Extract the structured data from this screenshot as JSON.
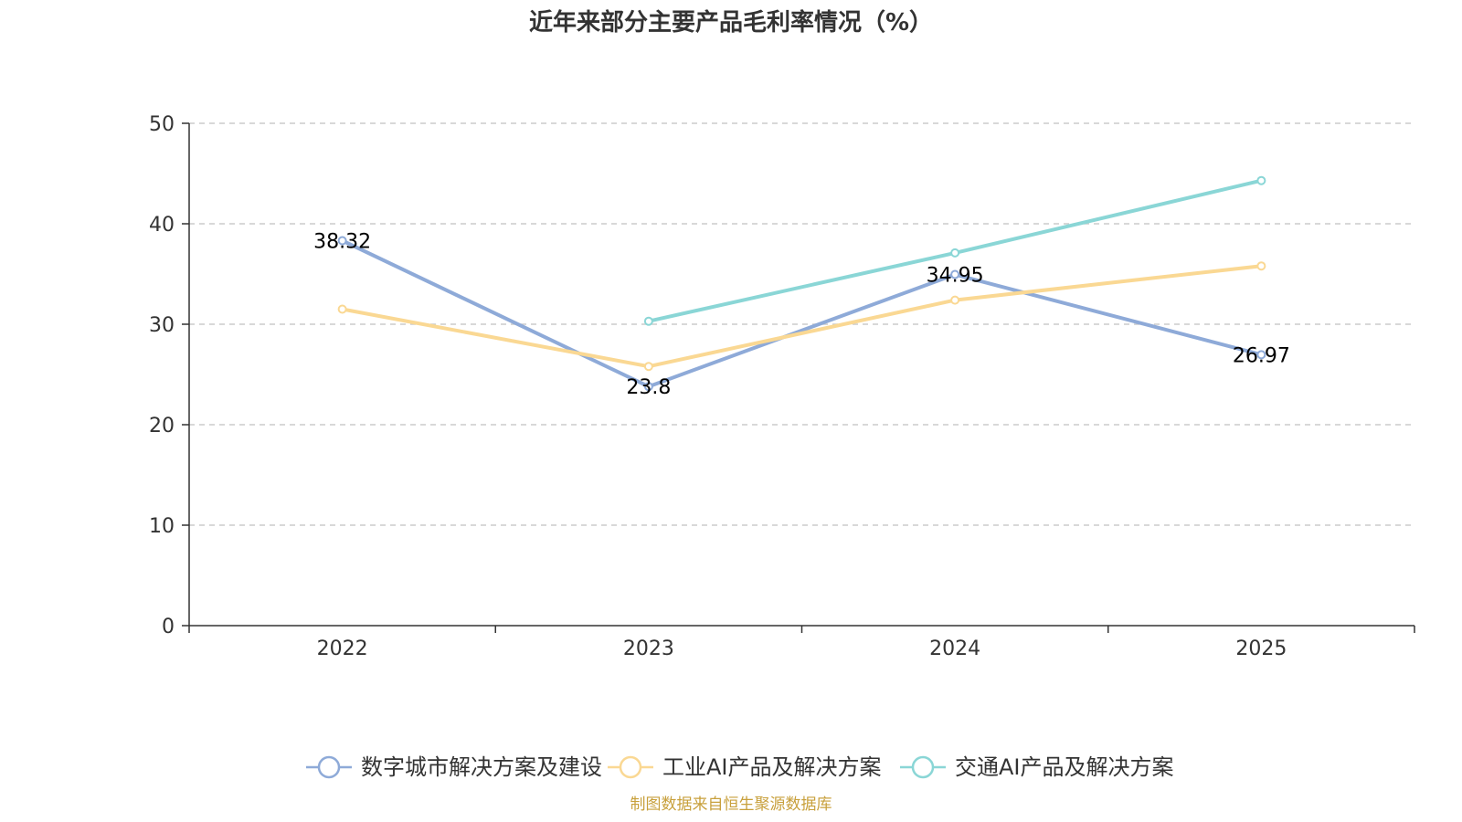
{
  "chart_data": {
    "type": "line",
    "title": "近年来部分主要产品毛利率情况（%）",
    "categories": [
      "2022",
      "2023",
      "2024",
      "2025"
    ],
    "ylim": [
      0,
      50
    ],
    "yticks": [
      0,
      10,
      20,
      30,
      40,
      50
    ],
    "grid": true,
    "legend_position": "bottom",
    "series": [
      {
        "name": "数字城市解决方案及建设",
        "color": "#8eaad8",
        "values": [
          38.32,
          23.8,
          34.95,
          26.97
        ],
        "labels": [
          "38.32",
          "23.8",
          "34.95",
          "26.97"
        ]
      },
      {
        "name": "工业AI产品及解决方案",
        "color": "#fad893",
        "values": [
          31.5,
          25.8,
          32.4,
          35.8
        ],
        "labels": []
      },
      {
        "name": "交通AI产品及解决方案",
        "color": "#8ad6d6",
        "values": [
          null,
          30.3,
          37.1,
          44.3
        ],
        "labels": []
      }
    ],
    "source": "制图数据来自恒生聚源数据库"
  }
}
